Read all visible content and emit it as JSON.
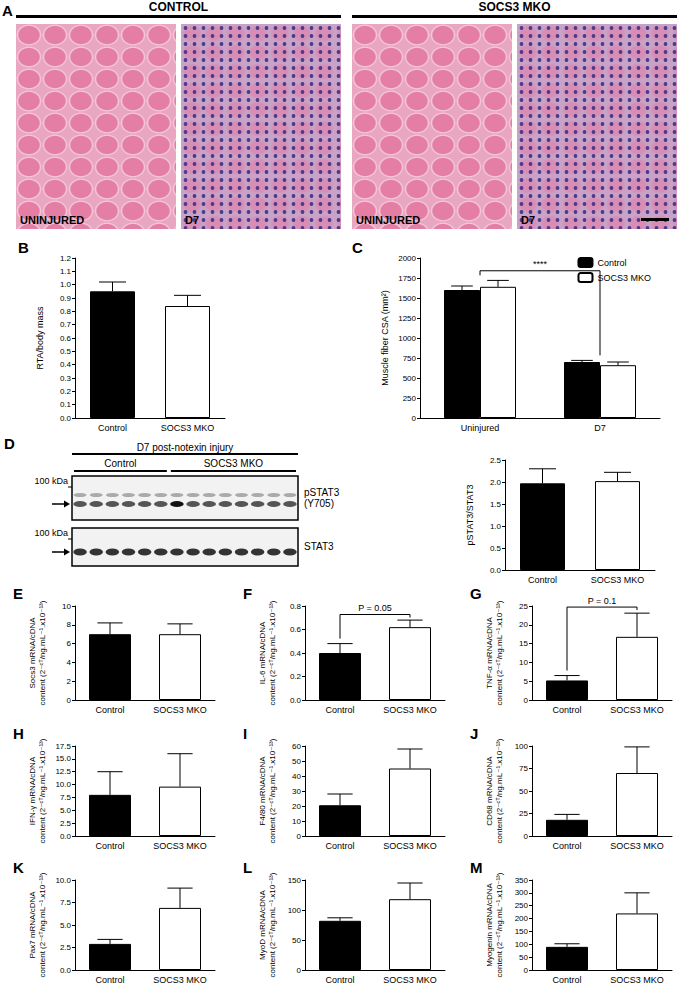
{
  "panel_a": {
    "title": "A",
    "groups": [
      "CONTROL",
      "SOCS3 MKO"
    ],
    "images": [
      "UNINJURED",
      "D7",
      "UNINJURED",
      "D7"
    ]
  },
  "blot": {
    "title": "D7 post-notexin injury",
    "groups": [
      "Control",
      "SOCS3 MKO"
    ],
    "lanes": [
      6,
      8
    ],
    "marker": "100 kDa",
    "rows": [
      "pSTAT3\n(Y705)",
      "STAT3"
    ]
  },
  "chart_data": [
    {
      "type": "bar",
      "title": "B",
      "y_label": "RTA/body mass",
      "categories": [
        "Control",
        "SOCS3 MKO"
      ],
      "values": [
        0.95,
        0.84
      ],
      "errors": [
        0.07,
        0.08
      ],
      "colors": [
        "#000000",
        "#ffffff"
      ],
      "grid": false,
      "ylim": [
        0,
        1.2
      ],
      "yticks": [
        {
          "value": 0,
          "label": "0.0"
        },
        {
          "value": 0.1,
          "label": "0.1"
        },
        {
          "value": 0.2,
          "label": "0.2"
        },
        {
          "value": 0.3,
          "label": "0.3"
        },
        {
          "value": 0.4,
          "label": "0.4"
        },
        {
          "value": 0.5,
          "label": "0.5"
        },
        {
          "value": 0.6,
          "label": "0.6"
        },
        {
          "value": 0.7,
          "label": "0.7"
        },
        {
          "value": 0.8,
          "label": "0.8"
        },
        {
          "value": 0.9,
          "label": "0.9"
        },
        {
          "value": 1,
          "label": "1.0"
        },
        {
          "value": 1.1,
          "label": "1.1"
        },
        {
          "value": 1.2,
          "label": "1.2"
        }
      ]
    },
    {
      "type": "bar",
      "title": "C",
      "y_label": "Muscle fiber CSA (mm²)",
      "categories": [
        "Uninjured",
        "D7"
      ],
      "series": [
        {
          "name": "Control",
          "color": "#000000",
          "values": [
            1600,
            700
          ],
          "errors": [
            50,
            20
          ]
        },
        {
          "name": "SOCS3 MKO",
          "color": "#ffffff",
          "values": [
            1640,
            660
          ],
          "errors": [
            80,
            40
          ]
        }
      ],
      "legend": "top-right",
      "grid": false,
      "ylim": [
        0,
        2000
      ],
      "yticks": [
        0,
        250,
        500,
        750,
        1000,
        1250,
        1500,
        1750,
        2000
      ],
      "annotations": [
        {
          "text": "****",
          "from": "Uninjured",
          "to": "D7"
        }
      ]
    },
    {
      "type": "bar",
      "title": "D",
      "y_label": "pSTAT3/STAT3",
      "categories": [
        "Control",
        "SOCS3 MKO"
      ],
      "values": [
        1.97,
        2.02
      ],
      "errors": [
        0.33,
        0.2
      ],
      "colors": [
        "#000000",
        "#ffffff"
      ],
      "grid": false,
      "ylim": [
        0,
        2.5
      ],
      "yticks": [
        {
          "value": 0,
          "label": "0.0"
        },
        {
          "value": 0.5,
          "label": "0.5"
        },
        {
          "value": 1,
          "label": "1.0"
        },
        {
          "value": 1.5,
          "label": "1.5"
        },
        {
          "value": 2,
          "label": "2.0"
        },
        {
          "value": 2.5,
          "label": "2.5"
        }
      ]
    },
    {
      "type": "bar",
      "title": "E",
      "y_label": "Socs3 mRNA/cDNA\ncontent (2⁻ᶜᵀ/ng.mL⁻¹.x10⁻¹³)",
      "categories": [
        "Control",
        "SOCS3 MKO"
      ],
      "values": [
        7.0,
        7.0
      ],
      "errors": [
        1.2,
        1.1
      ],
      "colors": [
        "#000000",
        "#ffffff"
      ],
      "grid": false,
      "ylim": [
        0,
        10
      ],
      "yticks": [
        0,
        2,
        4,
        6,
        8,
        10
      ]
    },
    {
      "type": "bar",
      "title": "F",
      "y_label": "IL-6 mRNA/cDNA\ncontent (2⁻ᶜᵀ/ng.mL⁻¹.x10⁻¹³)",
      "categories": [
        "Control",
        "SOCS3 MKO"
      ],
      "values": [
        0.4,
        0.62
      ],
      "errors": [
        0.08,
        0.06
      ],
      "colors": [
        "#000000",
        "#ffffff"
      ],
      "grid": false,
      "ylim": [
        0,
        0.8
      ],
      "yticks": [
        {
          "value": 0,
          "label": "0.0"
        },
        {
          "value": 0.2,
          "label": "0.2"
        },
        {
          "value": 0.4,
          "label": "0.4"
        },
        {
          "value": 0.6,
          "label": "0.6"
        },
        {
          "value": 0.8,
          "label": "0.8"
        }
      ],
      "annotations": [
        {
          "text": "P = 0.05",
          "from": "Control",
          "to": "SOCS3 MKO"
        }
      ]
    },
    {
      "type": "bar",
      "title": "G",
      "y_label": "TNF-α mRNA/cDNA\ncontent (2⁻ᶜᵀ/ng.mL⁻¹.x10⁻¹³)",
      "categories": [
        "Control",
        "SOCS3 MKO"
      ],
      "values": [
        5.2,
        16.8
      ],
      "errors": [
        1.3,
        6.3
      ],
      "colors": [
        "#000000",
        "#ffffff"
      ],
      "grid": false,
      "ylim": [
        0,
        25
      ],
      "yticks": [
        0,
        5,
        10,
        15,
        20,
        25
      ],
      "annotations": [
        {
          "text": "P = 0.1",
          "from": "Control",
          "to": "SOCS3 MKO"
        }
      ]
    },
    {
      "type": "bar",
      "title": "H",
      "y_label": "IFN-γ mRNA/cDNA\ncontent (2⁻ᶜᵀ/ng.mL⁻¹.x10⁻¹³)",
      "categories": [
        "Control",
        "SOCS3 MKO"
      ],
      "values": [
        8.0,
        9.6
      ],
      "errors": [
        4.5,
        6.4
      ],
      "colors": [
        "#000000",
        "#ffffff"
      ],
      "grid": false,
      "ylim": [
        0,
        17.5
      ],
      "yticks": [
        {
          "value": 0,
          "label": "0.0"
        },
        {
          "value": 2.5,
          "label": "2.5"
        },
        {
          "value": 5,
          "label": "5.0"
        },
        {
          "value": 7.5,
          "label": "7.5"
        },
        {
          "value": 10,
          "label": "10.0"
        },
        {
          "value": 12.5,
          "label": "12.5"
        },
        {
          "value": 15,
          "label": "15.0"
        },
        {
          "value": 17.5,
          "label": "17.5"
        }
      ]
    },
    {
      "type": "bar",
      "title": "I",
      "y_label": "F4/80 mRNA/cDNA\ncontent (2⁻ᶜᵀ/ng.mL⁻¹.x10⁻¹³)",
      "categories": [
        "Control",
        "SOCS3 MKO"
      ],
      "values": [
        20.5,
        45
      ],
      "errors": [
        7.5,
        13
      ],
      "colors": [
        "#000000",
        "#ffffff"
      ],
      "grid": false,
      "ylim": [
        0,
        60
      ],
      "yticks": [
        0,
        10,
        20,
        30,
        40,
        50,
        60
      ]
    },
    {
      "type": "bar",
      "title": "J",
      "y_label": "CD68 mRNA/cDNA\ncontent (2⁻ᶜᵀ/ng.mL⁻¹.x10⁻¹³)",
      "categories": [
        "Control",
        "SOCS3 MKO"
      ],
      "values": [
        18,
        70
      ],
      "errors": [
        6,
        29
      ],
      "colors": [
        "#000000",
        "#ffffff"
      ],
      "grid": false,
      "ylim": [
        0,
        100
      ],
      "yticks": [
        0,
        25,
        50,
        75,
        100
      ]
    },
    {
      "type": "bar",
      "title": "K",
      "y_label": "Pax7 mRNA/cDNA\ncontent (2⁻ᶜᵀ/ng.mL⁻¹.x10⁻¹³)",
      "categories": [
        "Control",
        "SOCS3 MKO"
      ],
      "values": [
        2.9,
        6.9
      ],
      "errors": [
        0.5,
        2.2
      ],
      "colors": [
        "#000000",
        "#ffffff"
      ],
      "grid": false,
      "ylim": [
        0,
        10
      ],
      "yticks": [
        {
          "value": 0,
          "label": "0.0"
        },
        {
          "value": 2.5,
          "label": "2.5"
        },
        {
          "value": 5,
          "label": "5.0"
        },
        {
          "value": 7.5,
          "label": "7.5"
        },
        {
          "value": 10,
          "label": "10.0"
        }
      ]
    },
    {
      "type": "bar",
      "title": "L",
      "y_label": "MyoD mRNA/cDNA\ncontent (2⁻ᶜᵀ/ng.mL⁻¹.x10⁻¹³)",
      "categories": [
        "Control",
        "SOCS3 MKO"
      ],
      "values": [
        82,
        118
      ],
      "errors": [
        5,
        27
      ],
      "colors": [
        "#000000",
        "#ffffff"
      ],
      "grid": false,
      "ylim": [
        0,
        150
      ],
      "yticks": [
        0,
        50,
        100,
        150
      ]
    },
    {
      "type": "bar",
      "title": "M",
      "y_label": "Myogenin mRNA/cDNA\ncontent (2⁻ᶜᵀ/ng.mL⁻¹.x10⁻¹³)",
      "categories": [
        "Control",
        "SOCS3 MKO"
      ],
      "values": [
        90,
        220
      ],
      "errors": [
        12,
        80
      ],
      "colors": [
        "#000000",
        "#ffffff"
      ],
      "grid": false,
      "ylim": [
        0,
        350
      ],
      "yticks": [
        0,
        50,
        100,
        150,
        200,
        250,
        300,
        350
      ]
    }
  ]
}
